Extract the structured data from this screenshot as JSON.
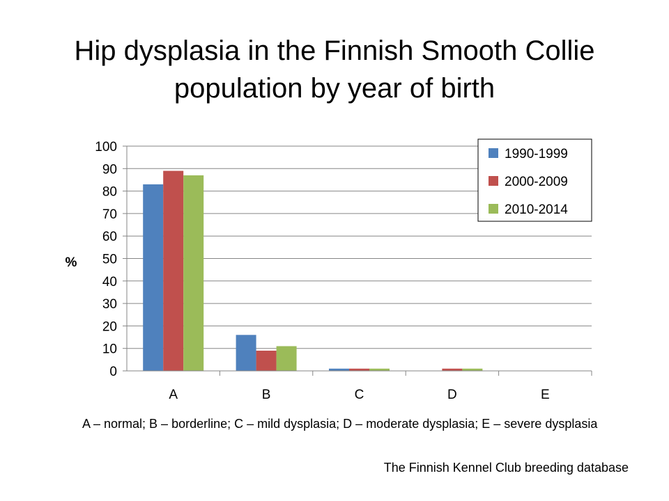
{
  "slide": {
    "title_line1": "Hip dysplasia in the Finnish Smooth Collie",
    "title_line2": "population by year of birth",
    "footnote": "A – normal; B – borderline; C – mild dysplasia; D – moderate dysplasia; E – severe dysplasia",
    "source": "The Finnish Kennel Club breeding database"
  },
  "chart_data": {
    "type": "bar",
    "title": "Hip dysplasia in the Finnish Smooth Collie population by year of birth",
    "xlabel": "",
    "ylabel": "%",
    "categories": [
      "A",
      "B",
      "C",
      "D",
      "E"
    ],
    "series": [
      {
        "name": "1990-1999",
        "color": "#4F81BD",
        "values": [
          83,
          16,
          1,
          0,
          0
        ]
      },
      {
        "name": "2000-2009",
        "color": "#C0504D",
        "values": [
          89,
          9,
          1,
          1,
          0
        ]
      },
      {
        "name": "2010-2014",
        "color": "#9BBB59",
        "values": [
          87,
          11,
          1,
          1,
          0
        ]
      }
    ],
    "ylim": [
      0,
      100
    ],
    "yticks": [
      0,
      10,
      20,
      30,
      40,
      50,
      60,
      70,
      80,
      90,
      100
    ],
    "grid": true,
    "legend": "top-right"
  }
}
